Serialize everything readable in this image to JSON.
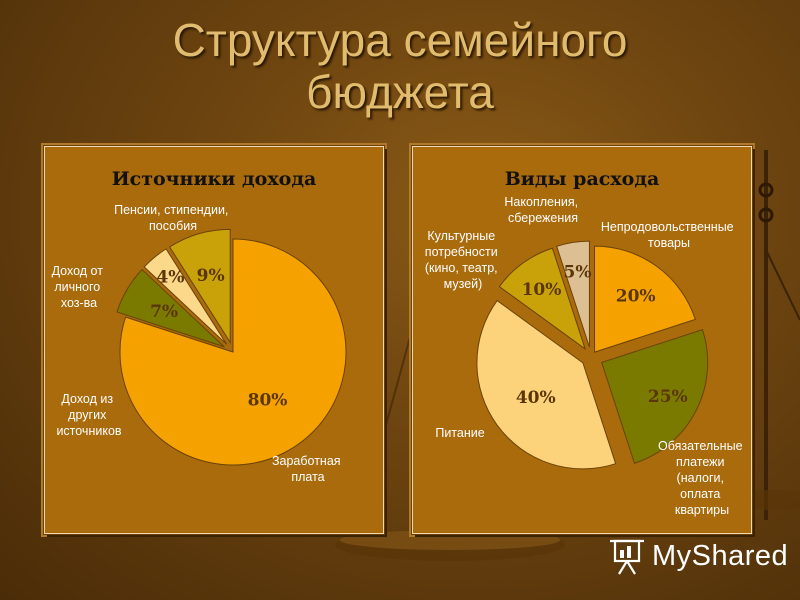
{
  "slide": {
    "title_line1": "Структура семейного",
    "title_line2": "бюджета"
  },
  "chart_data": [
    {
      "type": "pie",
      "title": "Источники дохода",
      "slices": [
        {
          "label": "Заработная плата",
          "value": 80,
          "display": "80%",
          "color": "#f5a200"
        },
        {
          "label": "Доход из других источников",
          "value": 7,
          "display": "7%",
          "color": "#7a7a00"
        },
        {
          "label": "Доход от личного хоз-ва",
          "value": 4,
          "display": "4%",
          "color": "#fcd98a"
        },
        {
          "label": "Пенсии, стипендии, пособия",
          "value": 9,
          "display": "9%",
          "color": "#c9a20a"
        }
      ]
    },
    {
      "type": "pie",
      "title": "Виды расхода",
      "slices": [
        {
          "label": "Непродовольственные товары",
          "value": 20,
          "display": "20%",
          "color": "#f5a200"
        },
        {
          "label": "Обязательные платежи (налоги, оплата квартиры",
          "value": 25,
          "display": "25%",
          "color": "#7a7a00"
        },
        {
          "label": "Питание",
          "value": 40,
          "display": "40%",
          "color": "#fcd37a"
        },
        {
          "label": "Культурные потребности (кино, театр, музей)",
          "value": 10,
          "display": "10%",
          "color": "#c9a20a"
        },
        {
          "label": "Накопления, сбережения",
          "value": 5,
          "display": "5%",
          "color": "#dcc093"
        }
      ]
    }
  ],
  "brand": {
    "logo_text": "MyShared",
    "icon": "presentation-board-icon"
  }
}
